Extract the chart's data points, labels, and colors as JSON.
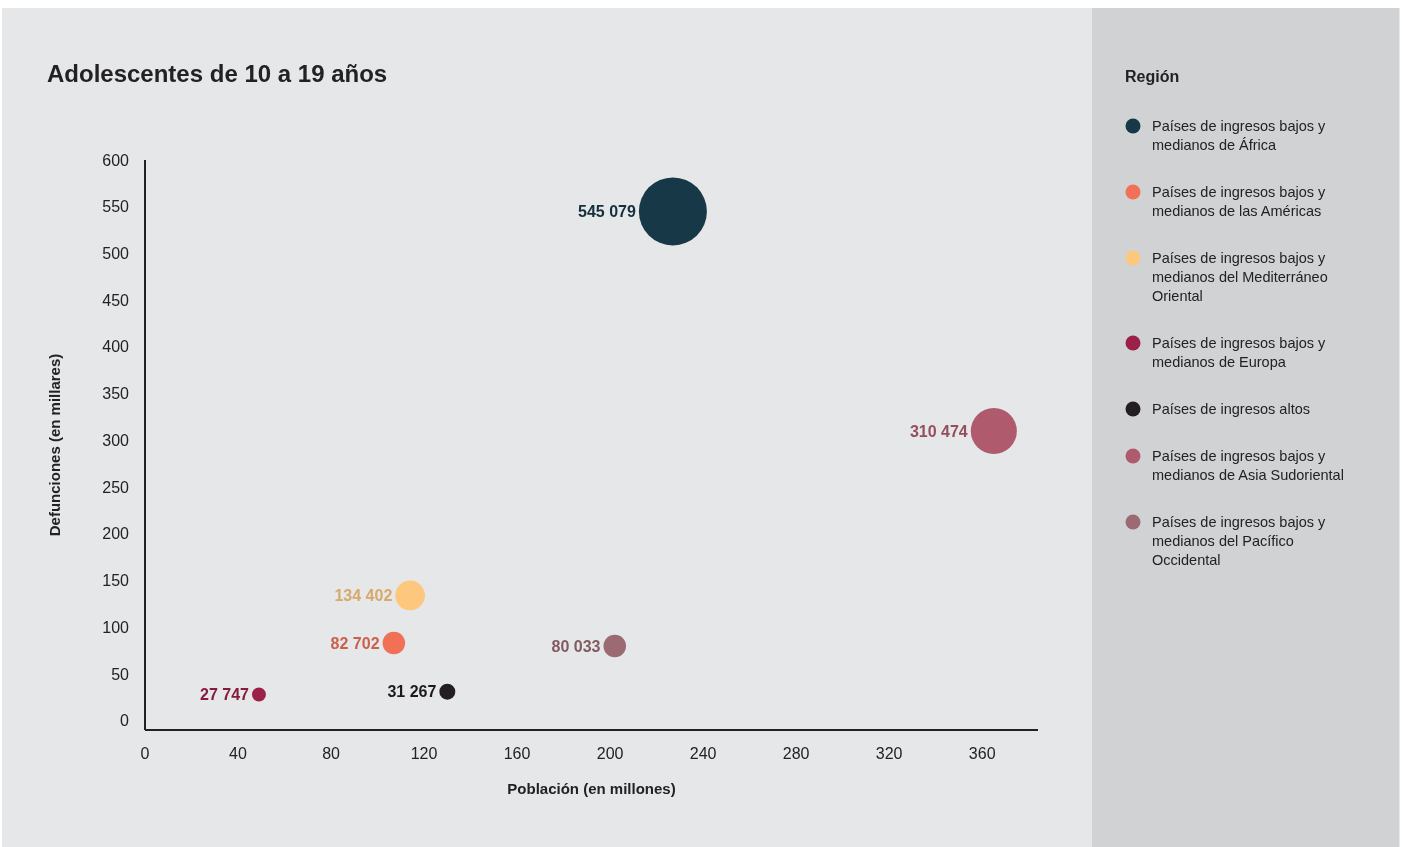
{
  "chart_data": {
    "type": "bubble",
    "title": "Adolescentes de 10 a 19 años",
    "xlabel": "Población (en millones)",
    "ylabel": "Defunciones (en millares)",
    "legend_title": "Región",
    "legend": "right",
    "xlim": [
      0,
      384
    ],
    "xticks": [
      0,
      40,
      80,
      120,
      160,
      200,
      240,
      280,
      320,
      360
    ],
    "ylim": [
      -10,
      600
    ],
    "yticks": [
      0,
      50,
      100,
      150,
      200,
      250,
      300,
      350,
      400,
      450,
      500,
      550,
      600
    ],
    "series": [
      {
        "name": "Países de ingresos bajos y medianos de África",
        "color": "#163847",
        "x": [
          227
        ],
        "values": [
          545
        ],
        "sizes": [
          1
        ]
      },
      {
        "name": "Países de ingresos bajos y medianos de las Américas",
        "color": "#f07156",
        "x": [
          107
        ],
        "values": [
          83
        ],
        "sizes": [
          0.11
        ]
      },
      {
        "name": "Países de ingresos bajos y medianos del Mediterráneo Oriental",
        "color": "#fdc77e",
        "x": [
          114
        ],
        "values": [
          134
        ],
        "sizes": [
          0.19
        ]
      },
      {
        "name": "Países de ingresos bajos y medianos de Europa",
        "color": "#9c2148",
        "x": [
          49
        ],
        "values": [
          28
        ],
        "sizes": [
          0.042
        ]
      },
      {
        "name": "Países de ingresos altos",
        "color": "#231f20",
        "x": [
          130
        ],
        "values": [
          31
        ],
        "sizes": [
          0.055
        ]
      },
      {
        "name": "Países de ingresos bajos y medianos de Asia Sudoriental",
        "color": "#b05a6e",
        "x": [
          365
        ],
        "values": [
          310
        ],
        "sizes": [
          0.46
        ]
      },
      {
        "name": "Países de ingresos bajos y medianos del Pacífico Occidental",
        "color": "#9b6a72",
        "x": [
          202
        ],
        "values": [
          80
        ],
        "sizes": [
          0.11
        ]
      }
    ],
    "annotations": [
      {
        "text": "545 079",
        "x": 227,
        "y": 545
      },
      {
        "text": "82 702",
        "x": 107,
        "y": 83
      },
      {
        "text": "134 402",
        "x": 114,
        "y": 134
      },
      {
        "text": "27 747",
        "x": 49,
        "y": 28
      },
      {
        "text": "31 267",
        "x": 130,
        "y": 31
      },
      {
        "text": "310 474",
        "x": 365,
        "y": 310
      },
      {
        "text": "80 033",
        "x": 202,
        "y": 80
      }
    ]
  }
}
